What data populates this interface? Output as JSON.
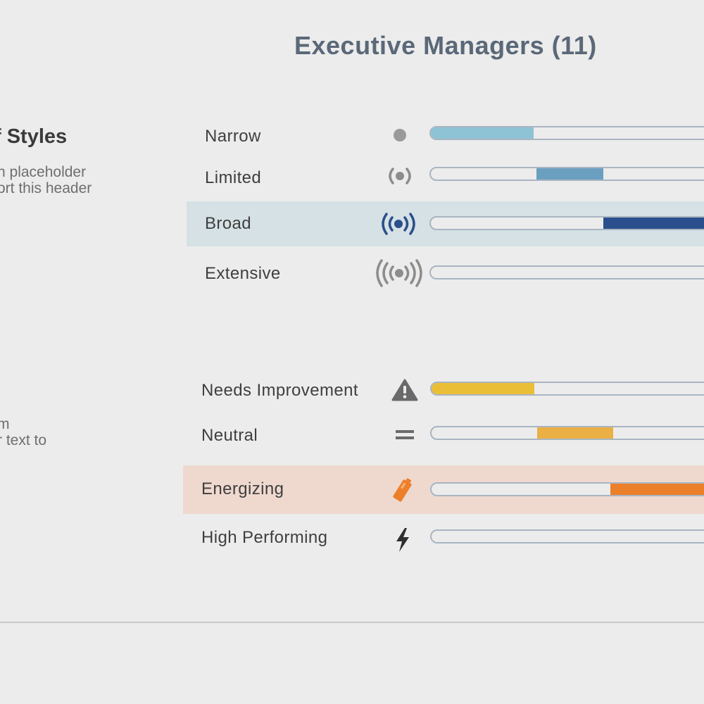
{
  "header": {
    "title": "Executive Managers (11)"
  },
  "side": {
    "styles_heading": "f Styles",
    "styles_text_1": "n placeholder",
    "styles_text_2": "ort this header",
    "second_text_1": "m",
    "second_text_2": "r text to"
  },
  "groups": [
    {
      "name": "styles",
      "rows": [
        {
          "label": "Narrow",
          "icon": "dot-icon",
          "selected": false,
          "fill_start": 0.0,
          "fill_end": 0.35,
          "color": "#8ec3d6"
        },
        {
          "label": "Limited",
          "icon": "signal-small-icon",
          "selected": false,
          "fill_start": 0.36,
          "fill_end": 0.59,
          "color": "#6b9fc0"
        },
        {
          "label": "Broad",
          "icon": "signal-medium-icon",
          "selected": true,
          "fill_start": 0.59,
          "fill_end": 1.0,
          "color": "#2b4f8c",
          "highlight": "#d5e1e4"
        },
        {
          "label": "Extensive",
          "icon": "signal-large-icon",
          "selected": false,
          "fill_start": 0.0,
          "fill_end": 0.0,
          "color": "#8ec3d6"
        }
      ]
    },
    {
      "name": "performance",
      "rows": [
        {
          "label": "Needs Improvement",
          "icon": "warning-icon",
          "selected": false,
          "fill_start": 0.0,
          "fill_end": 0.35,
          "color": "#ebbe37"
        },
        {
          "label": "Neutral",
          "icon": "equals-icon",
          "selected": false,
          "fill_start": 0.36,
          "fill_end": 0.62,
          "color": "#eab045"
        },
        {
          "label": "Energizing",
          "icon": "battery-icon",
          "selected": true,
          "fill_start": 0.61,
          "fill_end": 1.0,
          "color": "#ec7f2a",
          "highlight": "#efd9cf"
        },
        {
          "label": "High Performing",
          "icon": "lightning-icon",
          "selected": false,
          "fill_start": 0.0,
          "fill_end": 0.0,
          "color": "#ebbe37"
        }
      ]
    }
  ]
}
